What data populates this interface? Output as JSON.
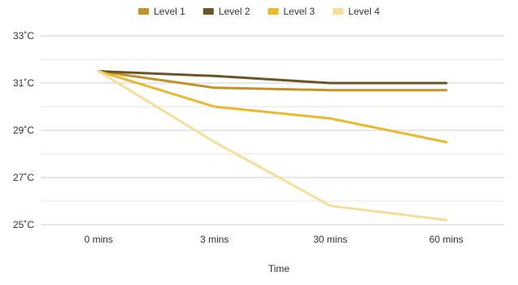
{
  "chart_data": {
    "type": "line",
    "title": "",
    "xlabel": "Time",
    "ylabel": "",
    "categories": [
      "0 mins",
      "3 mins",
      "30 mins",
      "60 mins"
    ],
    "ylim": [
      25,
      33
    ],
    "yticks": [
      25,
      27,
      29,
      31,
      33
    ],
    "ytick_labels": [
      "25˚C",
      "27˚C",
      "29˚C",
      "31˚C",
      "33˚C"
    ],
    "grid": true,
    "legend_position": "top",
    "series": [
      {
        "name": "Level 1",
        "color": "#c4922a",
        "values": [
          31.5,
          30.8,
          30.7,
          30.7
        ]
      },
      {
        "name": "Level 2",
        "color": "#6b5526",
        "values": [
          31.5,
          31.3,
          31.0,
          31.0
        ]
      },
      {
        "name": "Level 3",
        "color": "#ecb92e",
        "values": [
          31.5,
          30.0,
          29.5,
          28.5
        ]
      },
      {
        "name": "Level 4",
        "color": "#f7de98",
        "values": [
          31.5,
          28.5,
          25.8,
          25.2
        ]
      }
    ]
  }
}
